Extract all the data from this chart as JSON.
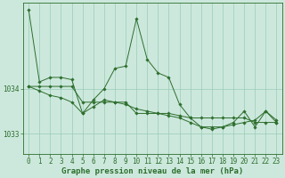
{
  "background_color": "#cce8dc",
  "grid_color": "#99ccb8",
  "line_color": "#2d6e2d",
  "marker_color": "#2d6e2d",
  "xlabel": "Graphe pression niveau de la mer (hPa)",
  "xlabel_fontsize": 6.5,
  "tick_fontsize": 5.5,
  "ylim": [
    1032.55,
    1035.9
  ],
  "xlim": [
    -0.5,
    23.5
  ],
  "yticks": [
    1033,
    1034
  ],
  "xticks": [
    0,
    1,
    2,
    3,
    4,
    5,
    6,
    7,
    8,
    9,
    10,
    11,
    12,
    13,
    14,
    15,
    16,
    17,
    18,
    19,
    20,
    21,
    22,
    23
  ],
  "series": [
    [
      1035.75,
      1034.15,
      1034.25,
      1034.25,
      1034.2,
      1033.45,
      1033.75,
      1034.0,
      1034.45,
      1034.5,
      1035.55,
      1034.65,
      1034.35,
      1034.25,
      1033.65,
      1033.35,
      1033.15,
      1033.1,
      1033.15,
      1033.25,
      1033.5,
      1033.15,
      1033.5,
      1033.25
    ],
    [
      1034.05,
      1034.05,
      1034.05,
      1034.05,
      1034.05,
      1033.7,
      1033.7,
      1033.7,
      1033.7,
      1033.7,
      1033.45,
      1033.45,
      1033.45,
      1033.45,
      1033.4,
      1033.35,
      1033.35,
      1033.35,
      1033.35,
      1033.35,
      1033.35,
      1033.25,
      1033.25,
      1033.25
    ],
    [
      1034.05,
      1033.95,
      1033.85,
      1033.8,
      1033.7,
      1033.45,
      1033.6,
      1033.75,
      1033.7,
      1033.65,
      1033.55,
      1033.5,
      1033.45,
      1033.4,
      1033.35,
      1033.25,
      1033.15,
      1033.15,
      1033.15,
      1033.2,
      1033.25,
      1033.3,
      1033.5,
      1033.3
    ]
  ]
}
